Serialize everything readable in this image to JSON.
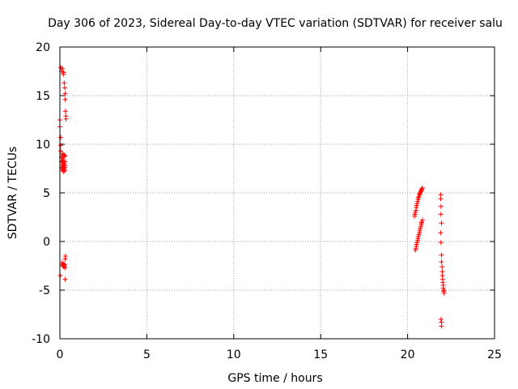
{
  "chart_data": {
    "type": "scatter",
    "title": "Day 306 of 2023, Sidereal Day-to-day VTEC variation (SDTVAR) for receiver salu",
    "xlabel": "GPS time / hours",
    "ylabel": "SDTVAR / TECUs",
    "xlim": [
      0,
      25
    ],
    "ylim": [
      -10,
      20
    ],
    "xticks": [
      0,
      5,
      10,
      15,
      20,
      25
    ],
    "yticks": [
      -10,
      -5,
      0,
      5,
      10,
      15,
      20
    ],
    "grid": true,
    "marker": "plus",
    "color": "#ff0000",
    "series": [
      {
        "x": [
          0.0,
          0.0,
          0.05,
          0.05,
          0.05,
          0.08,
          0.1,
          0.1,
          0.12,
          0.12,
          0.15,
          0.15,
          0.15,
          0.15,
          0.18,
          0.18,
          0.2,
          0.2,
          0.2,
          0.22,
          0.22,
          0.25,
          0.25,
          0.25,
          0.28,
          0.28,
          0.3,
          0.3,
          0.3,
          0.1,
          0.15,
          0.2,
          0.22,
          0.25,
          0.28,
          0.3,
          0.3,
          0.32,
          0.35,
          0.35,
          0.12,
          0.15,
          0.18,
          0.2,
          0.22,
          0.25,
          0.28,
          0.3,
          0.3,
          0.32,
          20.4,
          20.42,
          20.45,
          20.48,
          20.5,
          20.52,
          20.55,
          20.58,
          20.6,
          20.62,
          20.65,
          20.68,
          20.7,
          20.72,
          20.75,
          20.78,
          20.8,
          20.82,
          20.85,
          20.45,
          20.48,
          20.5,
          20.52,
          20.55,
          20.58,
          20.6,
          20.62,
          20.65,
          20.68,
          20.7,
          20.72,
          20.75,
          20.78,
          20.8,
          20.82,
          20.85,
          21.9,
          21.9,
          21.92,
          21.92,
          21.95,
          21.9,
          21.92,
          21.95,
          21.95,
          21.98,
          22.0,
          22.0,
          22.02,
          22.03,
          22.05,
          22.05,
          22.07,
          22.08,
          22.1,
          21.92,
          21.95,
          21.95
        ],
        "y": [
          12.5,
          11.8,
          10.7,
          9.9,
          9.3,
          8.7,
          8.2,
          7.6,
          7.9,
          8.3,
          7.3,
          7.5,
          8.6,
          9.0,
          7.7,
          8.1,
          7.4,
          8.4,
          8.9,
          7.2,
          7.8,
          7.5,
          8.0,
          8.9,
          7.6,
          7.3,
          7.8,
          8.2,
          8.8,
          17.5,
          17.8,
          17.2,
          17.4,
          16.3,
          15.8,
          15.2,
          14.6,
          13.4,
          12.9,
          12.6,
          -2.2,
          -2.4,
          -2.5,
          -2.3,
          -2.6,
          -2.5,
          -2.4,
          -2.7,
          -1.8,
          -1.5,
          2.6,
          2.8,
          3.0,
          3.2,
          3.5,
          3.7,
          3.9,
          4.1,
          4.3,
          4.5,
          4.6,
          4.8,
          4.9,
          5.0,
          5.1,
          5.2,
          5.3,
          5.4,
          5.5,
          -0.9,
          -0.7,
          -0.5,
          -0.3,
          -0.1,
          0.1,
          0.3,
          0.5,
          0.7,
          0.9,
          1.1,
          1.3,
          1.5,
          1.7,
          1.9,
          2.0,
          2.2,
          4.8,
          4.4,
          3.6,
          2.8,
          1.9,
          0.9,
          -0.1,
          -1.4,
          -2.1,
          -2.6,
          -3.1,
          -3.5,
          -3.9,
          -4.2,
          -4.5,
          -4.8,
          -5.0,
          -5.1,
          -5.3,
          -8.0,
          -8.3,
          -8.7
        ]
      }
    ],
    "extra_points": {
      "x": [
        0.02,
        0.3,
        0.05
      ],
      "y": [
        -3.5,
        -3.9,
        17.9
      ]
    }
  }
}
